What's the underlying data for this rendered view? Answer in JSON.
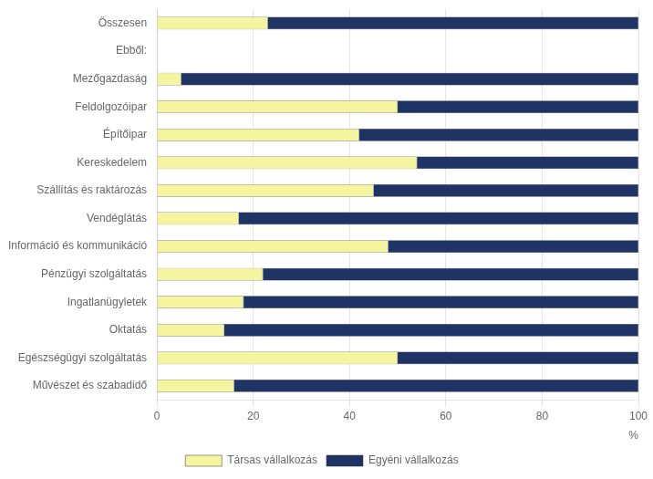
{
  "chart_data": {
    "type": "bar",
    "orientation": "horizontal",
    "stacked": true,
    "categories": [
      "Összesen",
      "Ebből:",
      "Mezőgazdaság",
      "Feldolgozóipar",
      "Építőipar",
      "Kereskedelem",
      "Szállítás és raktározás",
      "Vendéglátás",
      "Információ és kommunikáció",
      "Pénzügyi szolgáltatás",
      "Ingatlanügyletek",
      "Oktatás",
      "Egészségügyi szolgáltatás",
      "Művészet és szabadidő"
    ],
    "series": [
      {
        "name": "Társas vállalkozás",
        "color": "#f5f5a0",
        "values": [
          23,
          null,
          5,
          50,
          42,
          54,
          45,
          17,
          48,
          22,
          18,
          14,
          50,
          16
        ]
      },
      {
        "name": "Egyéni vállalkozás",
        "color": "#1f3464",
        "values": [
          77,
          null,
          95,
          50,
          58,
          46,
          55,
          83,
          52,
          78,
          82,
          86,
          50,
          84
        ]
      }
    ],
    "xlabel": "%",
    "xlim": [
      0,
      100
    ],
    "xticks": [
      0,
      20,
      40,
      60,
      80,
      100
    ],
    "grid": true,
    "legend": "bottom"
  }
}
